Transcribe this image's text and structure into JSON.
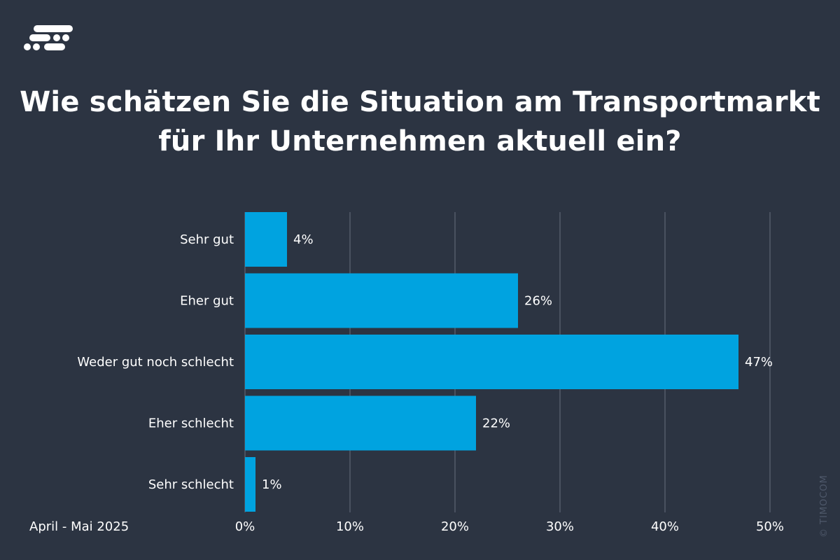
{
  "brand": {
    "logo_icon": "timocom-logo-icon",
    "copyright": "© TIMOCOM"
  },
  "title_line1": "Wie schätzen Sie die Situation am Transportmarkt",
  "title_line2": "für Ihr Unternehmen aktuell ein?",
  "period": "April - Mai 2025",
  "colors": {
    "background": "#2c3442",
    "bar": "#00a3e0",
    "grid": "#5d6575"
  },
  "chart_data": {
    "type": "bar",
    "orientation": "horizontal",
    "title": "Wie schätzen Sie die Situation am Transportmarkt für Ihr Unternehmen aktuell ein?",
    "categories": [
      "Sehr gut",
      "Eher gut",
      "Weder gut noch schlecht",
      "Eher schlecht",
      "Sehr schlecht"
    ],
    "values": [
      4,
      26,
      47,
      22,
      1
    ],
    "value_labels": [
      "4%",
      "26%",
      "47%",
      "22%",
      "1%"
    ],
    "xlabel": "",
    "ylabel": "",
    "xlim": [
      0,
      50
    ],
    "xticks": [
      0,
      10,
      20,
      30,
      40,
      50
    ],
    "xtick_labels": [
      "0%",
      "10%",
      "20%",
      "30%",
      "40%",
      "50%"
    ],
    "grid": true,
    "legend": "none"
  }
}
